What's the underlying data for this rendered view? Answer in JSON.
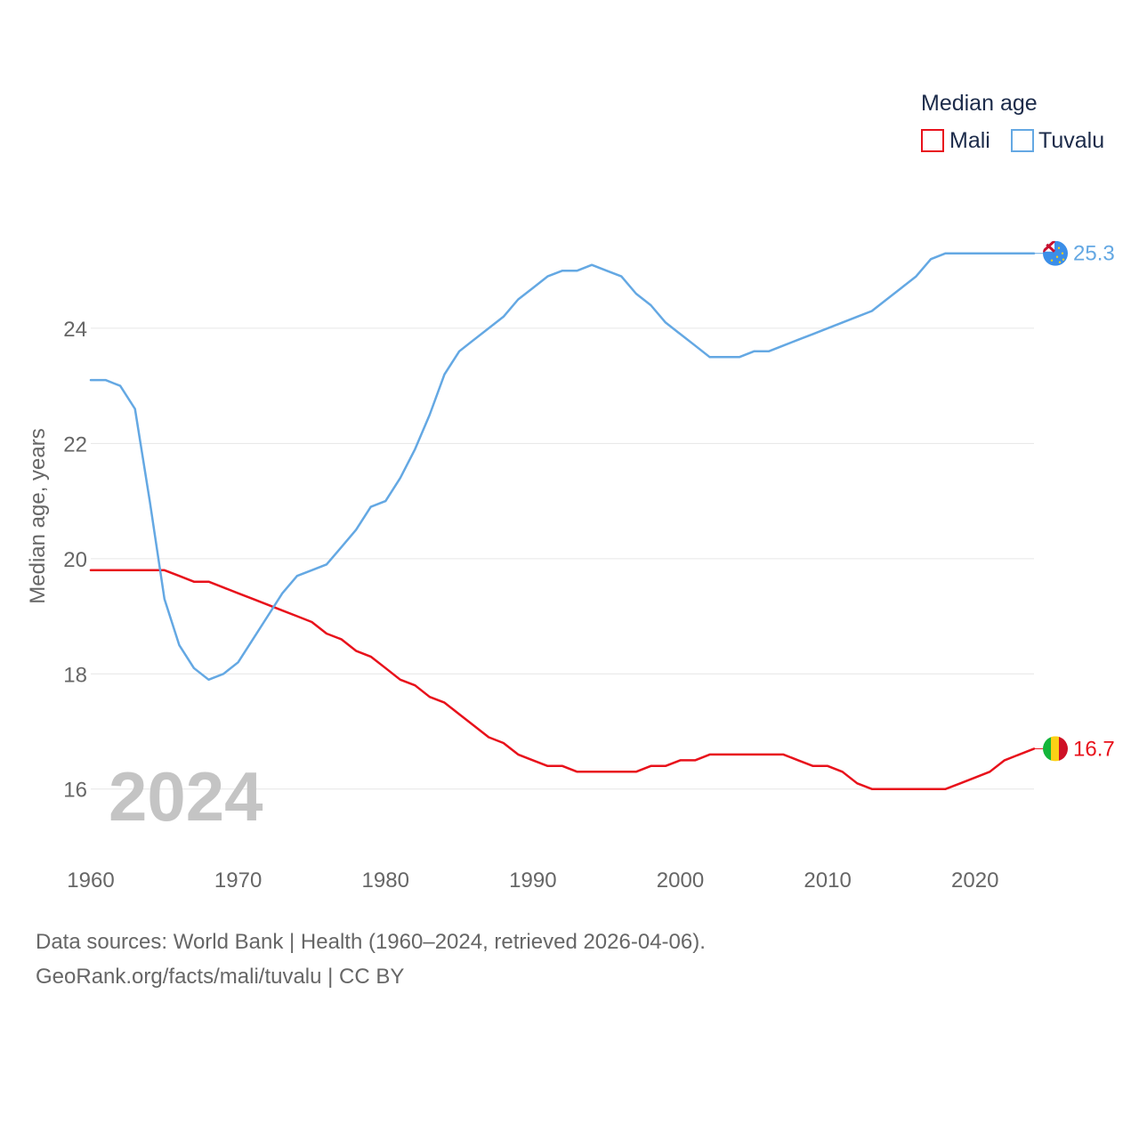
{
  "chart_data": {
    "type": "line",
    "legend_title": "Median age",
    "ylabel": "Median age, years",
    "xlabel": "",
    "xlim": [
      1960,
      2024
    ],
    "ylim": [
      15.1,
      26.3
    ],
    "yticks": [
      16,
      18,
      20,
      22,
      24
    ],
    "xticks": [
      1960,
      1970,
      1980,
      1990,
      2000,
      2010,
      2020
    ],
    "current_year_label": "2024",
    "legend_position": "top-right",
    "series": [
      {
        "name": "Mali",
        "color": "#e8111b",
        "end_label": "16.7",
        "x": [
          1960,
          1961,
          1962,
          1963,
          1964,
          1965,
          1966,
          1967,
          1968,
          1969,
          1970,
          1971,
          1972,
          1973,
          1974,
          1975,
          1976,
          1977,
          1978,
          1979,
          1980,
          1981,
          1982,
          1983,
          1984,
          1985,
          1986,
          1987,
          1988,
          1989,
          1990,
          1991,
          1992,
          1993,
          1994,
          1995,
          1996,
          1997,
          1998,
          1999,
          2000,
          2001,
          2002,
          2003,
          2004,
          2005,
          2006,
          2007,
          2008,
          2009,
          2010,
          2011,
          2012,
          2013,
          2014,
          2015,
          2016,
          2017,
          2018,
          2019,
          2020,
          2021,
          2022,
          2023,
          2024
        ],
        "values": [
          19.8,
          19.8,
          19.8,
          19.8,
          19.8,
          19.8,
          19.7,
          19.6,
          19.6,
          19.5,
          19.4,
          19.3,
          19.2,
          19.1,
          19.0,
          18.9,
          18.7,
          18.6,
          18.4,
          18.3,
          18.1,
          17.9,
          17.8,
          17.6,
          17.5,
          17.3,
          17.1,
          16.9,
          16.8,
          16.6,
          16.5,
          16.4,
          16.4,
          16.3,
          16.3,
          16.3,
          16.3,
          16.3,
          16.4,
          16.4,
          16.5,
          16.5,
          16.6,
          16.6,
          16.6,
          16.6,
          16.6,
          16.6,
          16.5,
          16.4,
          16.4,
          16.3,
          16.1,
          16.0,
          16.0,
          16.0,
          16.0,
          16.0,
          16.0,
          16.1,
          16.2,
          16.3,
          16.5,
          16.6,
          16.7
        ]
      },
      {
        "name": "Tuvalu",
        "color": "#64a8e3",
        "end_label": "25.3",
        "x": [
          1960,
          1961,
          1962,
          1963,
          1964,
          1965,
          1966,
          1967,
          1968,
          1969,
          1970,
          1971,
          1972,
          1973,
          1974,
          1975,
          1976,
          1977,
          1978,
          1979,
          1980,
          1981,
          1982,
          1983,
          1984,
          1985,
          1986,
          1987,
          1988,
          1989,
          1990,
          1991,
          1992,
          1993,
          1994,
          1995,
          1996,
          1997,
          1998,
          1999,
          2000,
          2001,
          2002,
          2003,
          2004,
          2005,
          2006,
          2007,
          2008,
          2009,
          2010,
          2011,
          2012,
          2013,
          2014,
          2015,
          2016,
          2017,
          2018,
          2019,
          2020,
          2021,
          2022,
          2023,
          2024
        ],
        "values": [
          23.1,
          23.1,
          23.0,
          22.6,
          21.0,
          19.3,
          18.5,
          18.1,
          17.9,
          18.0,
          18.2,
          18.6,
          19.0,
          19.4,
          19.7,
          19.8,
          19.9,
          20.2,
          20.5,
          20.9,
          21.0,
          21.4,
          21.9,
          22.5,
          23.2,
          23.6,
          23.8,
          24.0,
          24.2,
          24.5,
          24.7,
          24.9,
          25.0,
          25.0,
          25.1,
          25.0,
          24.9,
          24.6,
          24.4,
          24.1,
          23.9,
          23.7,
          23.5,
          23.5,
          23.5,
          23.6,
          23.6,
          23.7,
          23.8,
          23.9,
          24.0,
          24.1,
          24.2,
          24.3,
          24.5,
          24.7,
          24.9,
          25.2,
          25.3,
          25.3,
          25.3,
          25.3,
          25.3,
          25.3,
          25.3
        ]
      }
    ]
  },
  "footer": {
    "sources": "Data sources: World Bank | Health (1960–2024, retrieved 2026-04-06).",
    "attribution": "GeoRank.org/facts/mali/tuvalu | CC BY"
  }
}
